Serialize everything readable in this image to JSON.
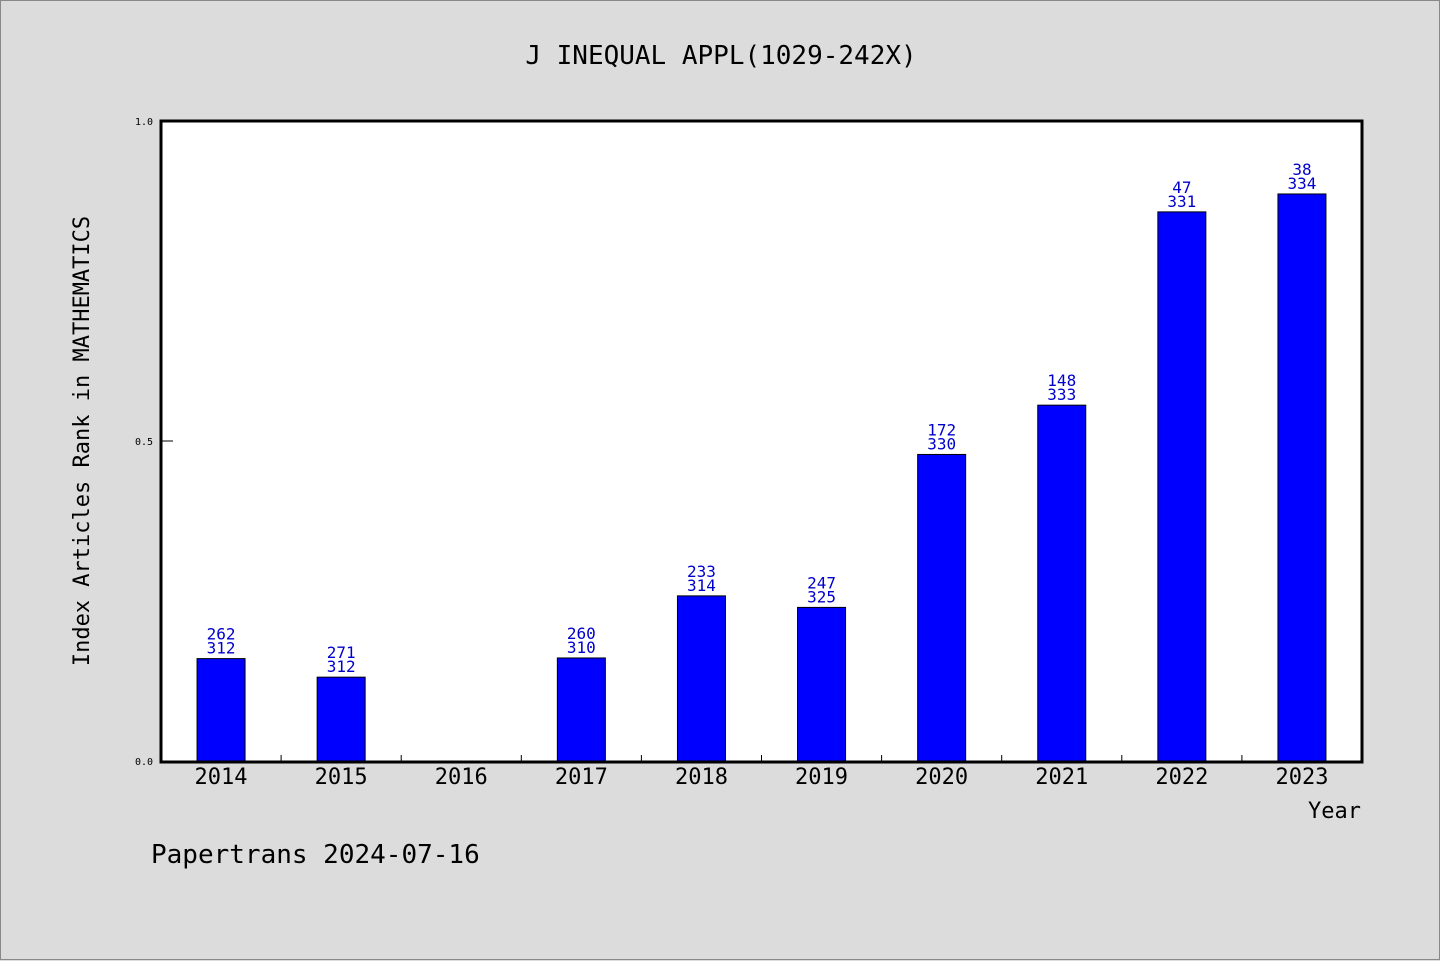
{
  "chart_data": {
    "type": "bar",
    "title": "J INEQUAL APPL(1029-242X)",
    "xlabel": "Year",
    "ylabel": "Index Articles Rank in MATHEMATICS",
    "ylim": [
      0,
      1.0
    ],
    "yticks": [
      "0.0",
      "0.5",
      "1.0"
    ],
    "categories": [
      "2014",
      "2015",
      "2016",
      "2017",
      "2018",
      "2019",
      "2020",
      "2021",
      "2022",
      "2023"
    ],
    "values": [
      0.16,
      0.131,
      null,
      0.161,
      0.258,
      0.24,
      0.479,
      0.556,
      0.858,
      0.886
    ],
    "ranks": [
      "262",
      "271",
      null,
      "260",
      "233",
      "247",
      "172",
      "148",
      "47",
      "38"
    ],
    "totals": [
      "312",
      "312",
      null,
      "310",
      "314",
      "325",
      "330",
      "333",
      "331",
      "334"
    ],
    "bar_color": "#0000ff",
    "label_color": "#0000cc",
    "grid": false
  },
  "footer": "Papertrans 2024-07-16"
}
